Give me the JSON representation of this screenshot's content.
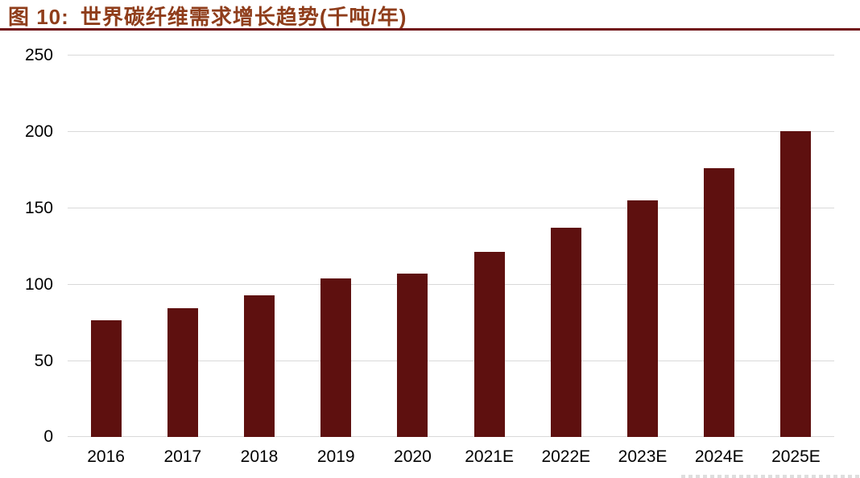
{
  "header": {
    "figure_label": "图 10:",
    "title": "世界碳纤维需求增长趋势(千吨/年)",
    "accent_color": "#8F3D1B",
    "underline_color": "#701316"
  },
  "chart_data": {
    "type": "bar",
    "title": "世界碳纤维需求增长趋势(千吨/年)",
    "unit": "千吨/年",
    "categories": [
      "2016",
      "2017",
      "2018",
      "2019",
      "2020",
      "2021E",
      "2022E",
      "2023E",
      "2024E",
      "2025E"
    ],
    "values": [
      76.5,
      84.2,
      92.6,
      103.7,
      106.9,
      121,
      137,
      155,
      176,
      200
    ],
    "xlabel": "",
    "ylabel": "",
    "ylim": [
      0,
      250
    ],
    "y_ticks": [
      0,
      50,
      100,
      150,
      200,
      250
    ],
    "grid": true,
    "legend": false,
    "bar_color": "#5E100F",
    "gridline_color": "#D9D9D9",
    "axis_text_color": "#000000"
  }
}
